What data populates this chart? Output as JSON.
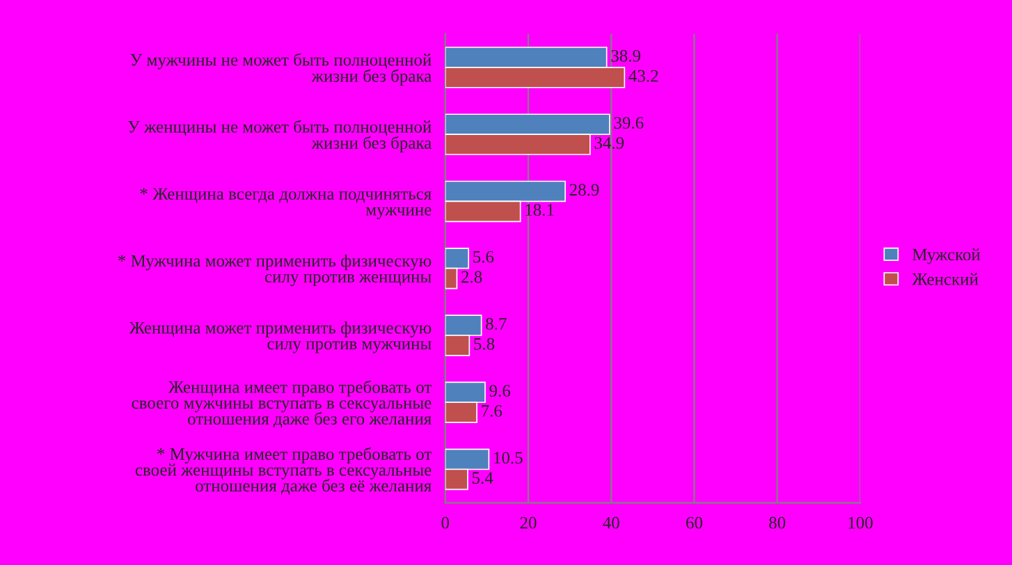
{
  "chart_data": {
    "type": "bar",
    "orientation": "horizontal",
    "categories": [
      "У мужчины не может быть полноценной жизни без брака",
      "У женщины не может быть полноценной жизни без брака",
      "* Женщина всегда должна подчиняться мужчине",
      "* Мужчина может применить физическую силу против женщины",
      "Женщина может применить физическую силу против мужчины",
      "Женщина имеет право требовать от своего мужчины вступать в сексуальные отношения даже без его желания",
      "* Мужчина имеет право требовать от своей женщины вступать в сексуальные отношения даже без её желания"
    ],
    "series": [
      {
        "name": "Мужской",
        "color": "#4f81bd",
        "values": [
          38.9,
          39.6,
          28.9,
          5.6,
          8.7,
          9.6,
          10.5
        ]
      },
      {
        "name": "Женский",
        "color": "#c0504d",
        "values": [
          43.2,
          34.9,
          18.1,
          2.8,
          5.8,
          7.6,
          5.4
        ]
      }
    ],
    "xlim": [
      0,
      100
    ],
    "xticks": [
      0,
      20,
      40,
      60,
      80,
      100
    ],
    "grid": "x",
    "legend": "right",
    "data_labels": true
  }
}
